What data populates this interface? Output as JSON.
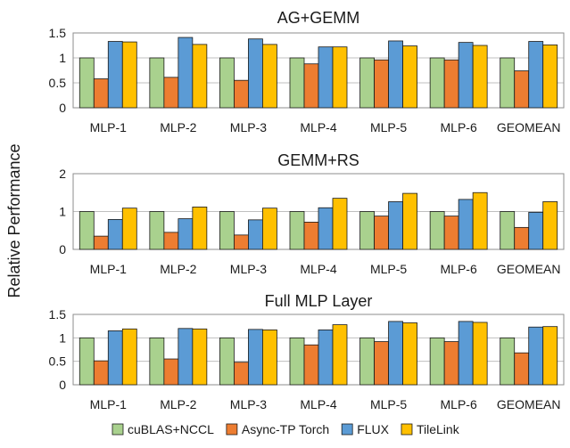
{
  "figure": {
    "ylabel": "Relative Performance"
  },
  "legend": [
    {
      "name": "cuBLAS+NCCL",
      "color": "#a9d18e"
    },
    {
      "name": "Async-TP Torch",
      "color": "#ed7d31"
    },
    {
      "name": "FLUX",
      "color": "#5b9bd5"
    },
    {
      "name": "TileLink",
      "color": "#ffc000"
    }
  ],
  "chart_data": [
    {
      "type": "bar",
      "title": "AG+GEMM",
      "categories": [
        "MLP-1",
        "MLP-2",
        "MLP-3",
        "MLP-4",
        "MLP-5",
        "MLP-6",
        "GEOMEAN"
      ],
      "ylim": [
        0,
        1.5
      ],
      "yticks": [
        0,
        0.5,
        1,
        1.5
      ],
      "ytick_labels": [
        "0",
        "0.5",
        "1",
        "1.5"
      ],
      "grid": true,
      "legend_position": "bottom",
      "series": [
        {
          "name": "cuBLAS+NCCL",
          "color": "#a9d18e",
          "values": [
            1.0,
            1.0,
            1.0,
            1.0,
            1.0,
            1.0,
            1.0
          ]
        },
        {
          "name": "Async-TP Torch",
          "color": "#ed7d31",
          "values": [
            0.58,
            0.61,
            0.55,
            0.88,
            0.96,
            0.96,
            0.74
          ]
        },
        {
          "name": "FLUX",
          "color": "#5b9bd5",
          "values": [
            1.33,
            1.41,
            1.38,
            1.22,
            1.34,
            1.31,
            1.33
          ]
        },
        {
          "name": "TileLink",
          "color": "#ffc000",
          "values": [
            1.32,
            1.27,
            1.27,
            1.22,
            1.24,
            1.25,
            1.26
          ]
        }
      ]
    },
    {
      "type": "bar",
      "title": "GEMM+RS",
      "categories": [
        "MLP-1",
        "MLP-2",
        "MLP-3",
        "MLP-4",
        "MLP-5",
        "MLP-6",
        "GEOMEAN"
      ],
      "ylim": [
        0,
        2
      ],
      "yticks": [
        0,
        1,
        2
      ],
      "ytick_labels": [
        "0",
        "1",
        "2"
      ],
      "grid": true,
      "legend_position": "bottom",
      "series": [
        {
          "name": "cuBLAS+NCCL",
          "color": "#a9d18e",
          "values": [
            1.0,
            1.0,
            1.0,
            1.0,
            1.0,
            1.0,
            1.0
          ]
        },
        {
          "name": "Async-TP Torch",
          "color": "#ed7d31",
          "values": [
            0.35,
            0.45,
            0.38,
            0.72,
            0.88,
            0.88,
            0.58
          ]
        },
        {
          "name": "FLUX",
          "color": "#5b9bd5",
          "values": [
            0.79,
            0.81,
            0.78,
            1.1,
            1.26,
            1.32,
            0.98
          ]
        },
        {
          "name": "TileLink",
          "color": "#ffc000",
          "values": [
            1.09,
            1.12,
            1.09,
            1.35,
            1.48,
            1.5,
            1.26
          ]
        }
      ]
    },
    {
      "type": "bar",
      "title": "Full MLP Layer",
      "categories": [
        "MLP-1",
        "MLP-2",
        "MLP-3",
        "MLP-4",
        "MLP-5",
        "MLP-6",
        "GEOMEAN"
      ],
      "ylim": [
        0,
        1.5
      ],
      "yticks": [
        0,
        0.5,
        1,
        1.5
      ],
      "ytick_labels": [
        "0",
        "0.5",
        "1",
        "1.5"
      ],
      "grid": true,
      "legend_position": "bottom",
      "series": [
        {
          "name": "cuBLAS+NCCL",
          "color": "#a9d18e",
          "values": [
            1.0,
            1.0,
            1.0,
            1.0,
            1.0,
            1.0,
            1.0
          ]
        },
        {
          "name": "Async-TP Torch",
          "color": "#ed7d31",
          "values": [
            0.51,
            0.55,
            0.48,
            0.85,
            0.92,
            0.92,
            0.68
          ]
        },
        {
          "name": "FLUX",
          "color": "#5b9bd5",
          "values": [
            1.15,
            1.2,
            1.18,
            1.17,
            1.35,
            1.35,
            1.23
          ]
        },
        {
          "name": "TileLink",
          "color": "#ffc000",
          "values": [
            1.19,
            1.19,
            1.17,
            1.28,
            1.32,
            1.33,
            1.24
          ]
        }
      ]
    }
  ]
}
